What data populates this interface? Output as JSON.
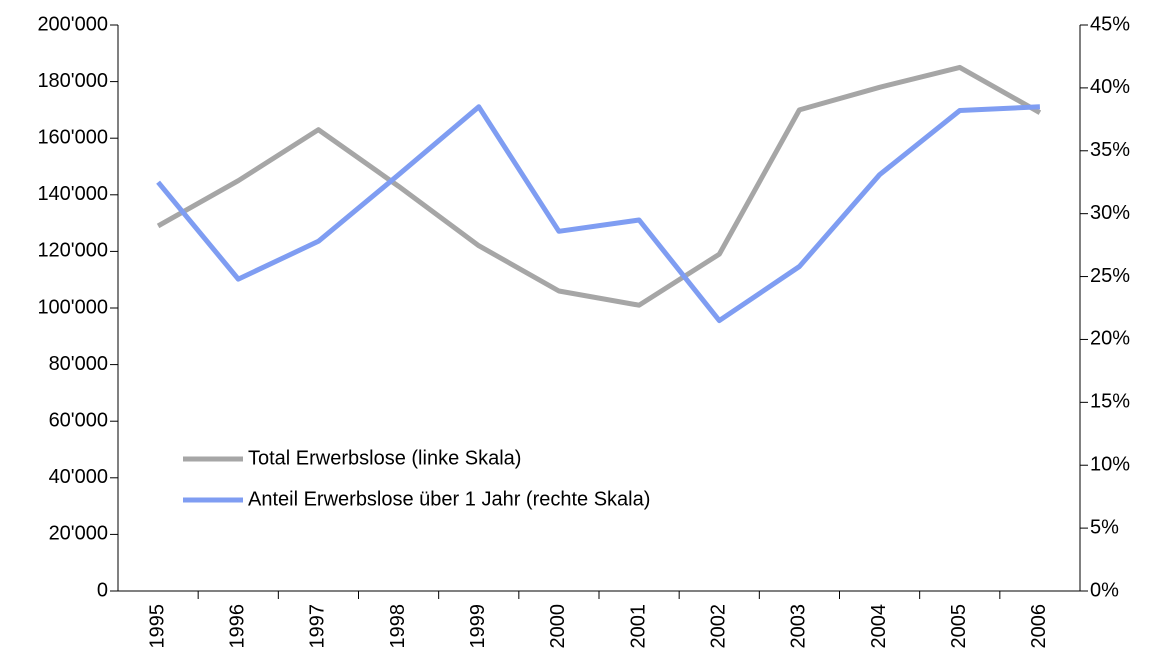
{
  "chart_data": {
    "type": "line",
    "categories": [
      "1995",
      "1996",
      "1997",
      "1998",
      "1999",
      "2000",
      "2001",
      "2002",
      "2003",
      "2004",
      "2005",
      "2006"
    ],
    "series": [
      {
        "name": "Total Erwerbslose (linke Skala)",
        "color": "#a6a6a6",
        "axis": "y",
        "values": [
          129000,
          145000,
          163000,
          143000,
          122000,
          106000,
          101000,
          119000,
          170000,
          178000,
          185000,
          169000
        ]
      },
      {
        "name": "Anteil Erwerbslose über 1 Jahr (rechte Skala)",
        "color": "#7f9df2",
        "axis": "y2",
        "values": [
          32.5,
          24.8,
          27.8,
          33.1,
          38.5,
          28.6,
          29.5,
          21.5,
          25.8,
          33.1,
          38.2,
          38.5
        ]
      }
    ],
    "ylim": [
      0,
      200000
    ],
    "yticks": [
      0,
      {
        "value": 20000,
        "label": "20'000"
      },
      {
        "value": 40000,
        "label": "40'000"
      },
      {
        "value": 60000,
        "label": "60'000"
      },
      {
        "value": 80000,
        "label": "80'000"
      },
      {
        "value": 100000,
        "label": "100'000"
      },
      {
        "value": 120000,
        "label": "120'000"
      },
      {
        "value": 140000,
        "label": "140'000"
      },
      {
        "value": 160000,
        "label": "160'000"
      },
      {
        "value": 180000,
        "label": "180'000"
      },
      {
        "value": 200000,
        "label": "200'000"
      }
    ],
    "y2lim": [
      0,
      45
    ],
    "y2ticks": [
      {
        "value": 0,
        "label": "0%"
      },
      {
        "value": 5,
        "label": "5%"
      },
      {
        "value": 10,
        "label": "10%"
      },
      {
        "value": 15,
        "label": "15%"
      },
      {
        "value": 20,
        "label": "20%"
      },
      {
        "value": 25,
        "label": "25%"
      },
      {
        "value": 30,
        "label": "30%"
      },
      {
        "value": 35,
        "label": "35%"
      },
      {
        "value": 40,
        "label": "40%"
      },
      {
        "value": 45,
        "label": "45%"
      }
    ],
    "legend": "lower-left"
  }
}
